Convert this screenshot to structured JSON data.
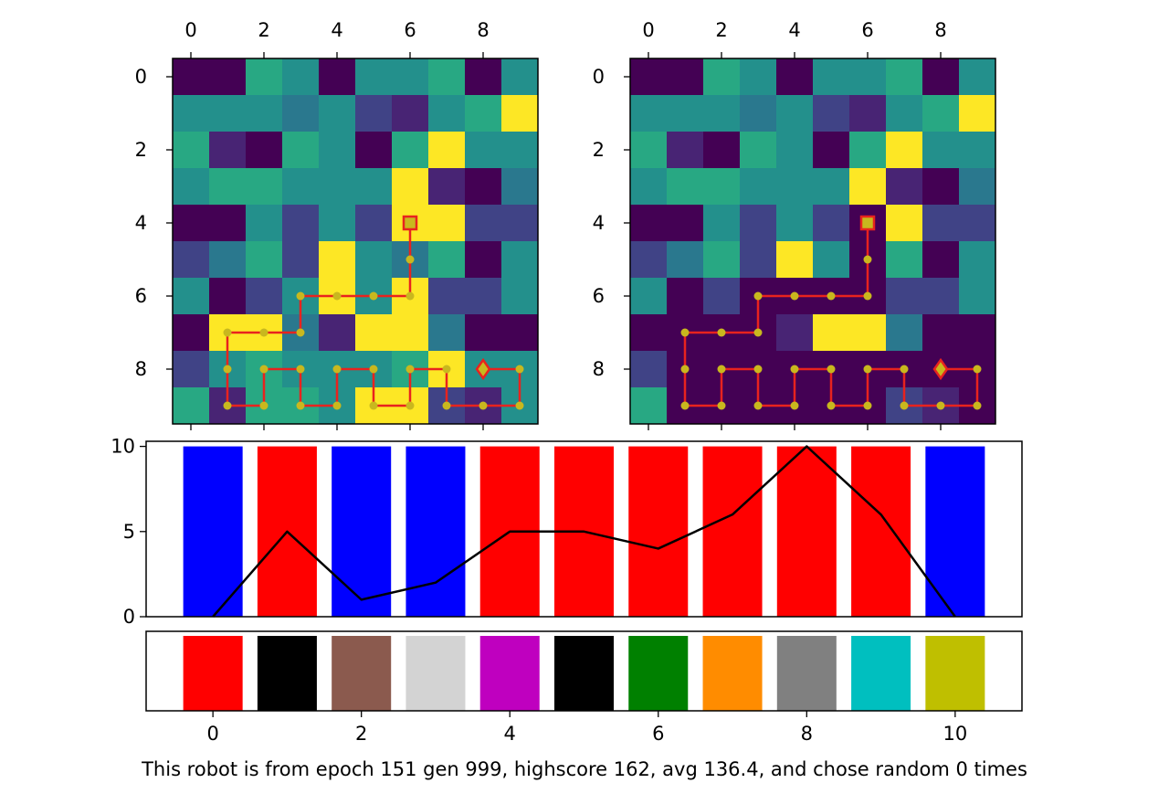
{
  "caption": "This robot is from epoch 151 gen 999, highscore 162, avg 136.4, and chose random 0 times",
  "chart_data": [
    {
      "type": "heatmap",
      "panel": "left",
      "xticks": [
        0,
        2,
        4,
        6,
        8
      ],
      "yticks": [
        0,
        2,
        4,
        6,
        8
      ],
      "xtick_position": "top",
      "colormap": "viridis",
      "grid": [
        [
          0.0,
          0.0,
          0.6,
          0.5,
          0.0,
          0.5,
          0.5,
          0.6,
          0.0,
          0.5
        ],
        [
          0.5,
          0.5,
          0.5,
          0.4,
          0.5,
          0.2,
          0.1,
          0.5,
          0.6,
          1.0
        ],
        [
          0.6,
          0.1,
          0.0,
          0.6,
          0.5,
          0.0,
          0.6,
          1.0,
          0.5,
          0.5
        ],
        [
          0.5,
          0.6,
          0.6,
          0.5,
          0.5,
          0.5,
          1.0,
          0.1,
          0.0,
          0.4
        ],
        [
          0.0,
          0.0,
          0.5,
          0.2,
          0.5,
          0.2,
          1.0,
          1.0,
          0.2,
          0.2
        ],
        [
          0.2,
          0.4,
          0.6,
          0.2,
          1.0,
          0.5,
          0.4,
          0.6,
          0.0,
          0.5
        ],
        [
          0.5,
          0.0,
          0.2,
          0.5,
          1.0,
          0.5,
          1.0,
          0.2,
          0.2,
          0.5
        ],
        [
          0.0,
          1.0,
          1.0,
          0.4,
          0.1,
          1.0,
          1.0,
          0.4,
          0.0,
          0.0
        ],
        [
          0.2,
          0.5,
          0.6,
          0.5,
          0.5,
          0.5,
          0.6,
          1.0,
          0.5,
          0.5
        ],
        [
          0.6,
          0.1,
          0.6,
          0.6,
          0.5,
          1.0,
          1.0,
          0.2,
          0.1,
          0.5
        ]
      ],
      "path": [
        [
          6,
          4
        ],
        [
          6,
          5
        ],
        [
          6,
          6
        ],
        [
          5,
          6
        ],
        [
          4,
          6
        ],
        [
          3,
          6
        ],
        [
          3,
          7
        ],
        [
          2,
          7
        ],
        [
          1,
          7
        ],
        [
          1,
          8
        ],
        [
          1,
          9
        ],
        [
          2,
          9
        ],
        [
          2,
          8
        ],
        [
          3,
          8
        ],
        [
          3,
          9
        ],
        [
          4,
          9
        ],
        [
          4,
          8
        ],
        [
          5,
          8
        ],
        [
          5,
          9
        ],
        [
          6,
          9
        ],
        [
          6,
          8
        ],
        [
          7,
          8
        ],
        [
          7,
          9
        ],
        [
          8,
          9
        ],
        [
          9,
          9
        ],
        [
          9,
          8
        ],
        [
          8,
          8
        ]
      ],
      "start": [
        6,
        4
      ],
      "end": [
        8,
        8
      ],
      "path_color": "#e8231e",
      "marker_color": "#c8b81e"
    },
    {
      "type": "heatmap",
      "panel": "right",
      "xticks": [
        0,
        2,
        4,
        6,
        8
      ],
      "yticks": [
        0,
        2,
        4,
        6,
        8
      ],
      "xtick_position": "top",
      "colormap": "viridis",
      "grid": [
        [
          0.0,
          0.0,
          0.6,
          0.5,
          0.0,
          0.5,
          0.5,
          0.6,
          0.0,
          0.5
        ],
        [
          0.5,
          0.5,
          0.5,
          0.4,
          0.5,
          0.2,
          0.1,
          0.5,
          0.6,
          1.0
        ],
        [
          0.6,
          0.1,
          0.0,
          0.6,
          0.5,
          0.0,
          0.6,
          1.0,
          0.5,
          0.5
        ],
        [
          0.5,
          0.6,
          0.6,
          0.5,
          0.5,
          0.5,
          1.0,
          0.1,
          0.0,
          0.4
        ],
        [
          0.0,
          0.0,
          0.5,
          0.2,
          0.5,
          0.2,
          0.0,
          1.0,
          0.2,
          0.2
        ],
        [
          0.2,
          0.4,
          0.6,
          0.2,
          1.0,
          0.5,
          0.0,
          0.6,
          0.0,
          0.5
        ],
        [
          0.5,
          0.0,
          0.2,
          0.0,
          0.0,
          0.0,
          0.0,
          0.2,
          0.2,
          0.5
        ],
        [
          0.0,
          0.0,
          0.0,
          0.0,
          0.1,
          1.0,
          1.0,
          0.4,
          0.0,
          0.0
        ],
        [
          0.2,
          0.0,
          0.0,
          0.0,
          0.0,
          0.0,
          0.0,
          0.0,
          0.0,
          0.0
        ],
        [
          0.6,
          0.0,
          0.0,
          0.0,
          0.0,
          0.0,
          0.0,
          0.2,
          0.1,
          0.0
        ]
      ],
      "path": [
        [
          6,
          4
        ],
        [
          6,
          5
        ],
        [
          6,
          6
        ],
        [
          5,
          6
        ],
        [
          4,
          6
        ],
        [
          3,
          6
        ],
        [
          3,
          7
        ],
        [
          2,
          7
        ],
        [
          1,
          7
        ],
        [
          1,
          8
        ],
        [
          1,
          9
        ],
        [
          2,
          9
        ],
        [
          2,
          8
        ],
        [
          3,
          8
        ],
        [
          3,
          9
        ],
        [
          4,
          9
        ],
        [
          4,
          8
        ],
        [
          5,
          8
        ],
        [
          5,
          9
        ],
        [
          6,
          9
        ],
        [
          6,
          8
        ],
        [
          7,
          8
        ],
        [
          7,
          9
        ],
        [
          8,
          9
        ],
        [
          9,
          9
        ],
        [
          9,
          8
        ],
        [
          8,
          8
        ]
      ],
      "start": [
        6,
        4
      ],
      "end": [
        8,
        8
      ],
      "path_color": "#e8231e",
      "marker_color": "#c8b81e"
    },
    {
      "type": "bar",
      "panel": "middle",
      "x": [
        0,
        1,
        2,
        3,
        4,
        5,
        6,
        7,
        8,
        9,
        10
      ],
      "values": [
        10,
        10,
        10,
        10,
        10,
        10,
        10,
        10,
        10,
        10,
        10
      ],
      "bar_colors": [
        "#0000ff",
        "#ff0000",
        "#0000ff",
        "#0000ff",
        "#ff0000",
        "#ff0000",
        "#ff0000",
        "#ff0000",
        "#ff0000",
        "#ff0000",
        "#0000ff"
      ],
      "line": {
        "x": [
          0,
          1,
          2,
          3,
          4,
          5,
          6,
          7,
          8,
          9,
          10
        ],
        "y": [
          0,
          5,
          1,
          2,
          5,
          5,
          4,
          6,
          10,
          6,
          0
        ],
        "color": "#000000"
      },
      "yticks": [
        0,
        5,
        10
      ],
      "ylim": [
        0,
        10.3
      ],
      "xlim": [
        -0.9,
        10.9
      ]
    },
    {
      "type": "bar",
      "panel": "bottom",
      "x": [
        0,
        1,
        2,
        3,
        4,
        5,
        6,
        7,
        8,
        9,
        10
      ],
      "values": [
        1,
        1,
        1,
        1,
        1,
        1,
        1,
        1,
        1,
        1,
        1
      ],
      "bar_colors": [
        "#ff0000",
        "#000000",
        "#8b5a4e",
        "#d3d3d3",
        "#bf00bf",
        "#000000",
        "#008000",
        "#ff8c00",
        "#808080",
        "#00bfbf",
        "#bfbf00"
      ],
      "xticks": [
        0,
        2,
        4,
        6,
        8,
        10
      ],
      "xlim": [
        -0.9,
        10.9
      ]
    }
  ]
}
